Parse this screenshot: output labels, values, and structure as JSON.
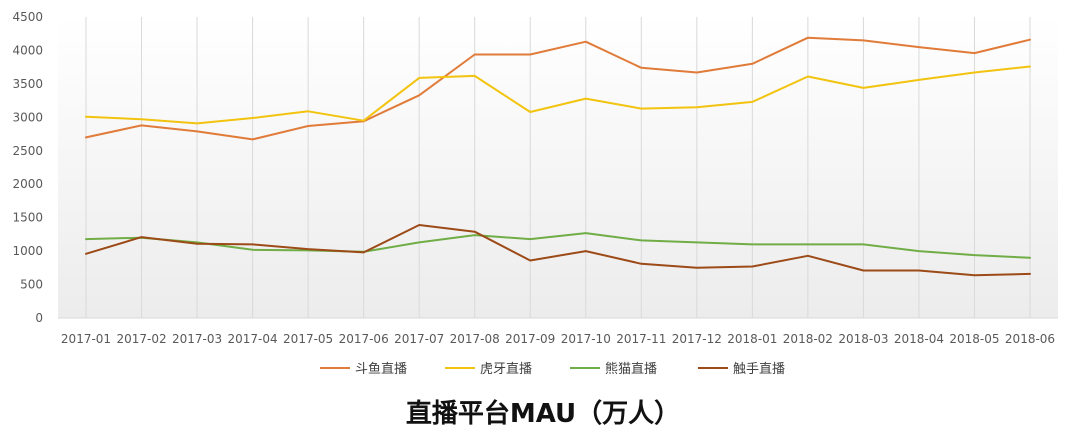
{
  "chart_data": {
    "type": "line",
    "title": "直播平台MAU（万人）",
    "xlabel": "",
    "ylabel": "",
    "ylim": [
      0,
      4500
    ],
    "yticks": [
      "0",
      "500",
      "1000",
      "1500",
      "2000",
      "2500",
      "3000",
      "3500",
      "4000",
      "4500"
    ],
    "categories": [
      "2017-01",
      "2017-02",
      "2017-03",
      "2017-04",
      "2017-05",
      "2017-06",
      "2017-07",
      "2017-08",
      "2017-09",
      "2017-10",
      "2017-11",
      "2017-12",
      "2018-01",
      "2018-02",
      "2018-03",
      "2018-04",
      "2018-05",
      "2018-06"
    ],
    "grid": "vertical",
    "legend_position": "bottom",
    "series": [
      {
        "name": "斗鱼直播",
        "color": "#E07B39",
        "values": [
          2700,
          2880,
          2790,
          2670,
          2870,
          2940,
          3330,
          3940,
          3940,
          4130,
          3740,
          3670,
          3800,
          4190,
          4150,
          4050,
          3960,
          4160
        ]
      },
      {
        "name": "虎牙直播",
        "color": "#F2C30F",
        "values": [
          3010,
          2970,
          2910,
          2990,
          3090,
          2950,
          3590,
          3620,
          3080,
          3280,
          3130,
          3150,
          3230,
          3610,
          3440,
          3560,
          3670,
          3760
        ]
      },
      {
        "name": "熊猫直播",
        "color": "#70AD47",
        "values": [
          1180,
          1200,
          1130,
          1020,
          1010,
          990,
          1130,
          1240,
          1180,
          1270,
          1160,
          1130,
          1100,
          1100,
          1100,
          1000,
          940,
          900
        ]
      },
      {
        "name": "触手直播",
        "color": "#9C4A17",
        "values": [
          960,
          1210,
          1110,
          1100,
          1030,
          980,
          1390,
          1290,
          860,
          1000,
          810,
          750,
          770,
          930,
          710,
          710,
          640,
          660
        ]
      }
    ]
  }
}
